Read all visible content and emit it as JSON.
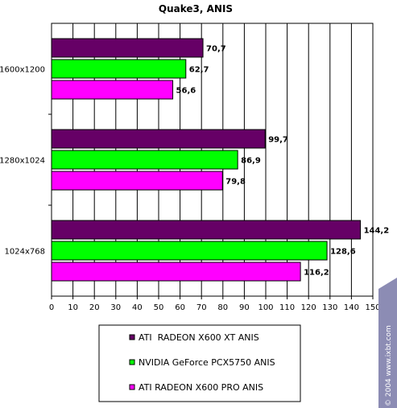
{
  "chart_data": {
    "type": "bar",
    "orientation": "horizontal",
    "title": "Quake3, ANIS",
    "categories": [
      "1600x1200",
      "1280x1024",
      "1024x768"
    ],
    "series": [
      {
        "name": "ATI  RADEON X600 XT ANIS",
        "color": "#660066",
        "values": [
          70.7,
          99.7,
          144.2
        ],
        "labels": [
          "70,7",
          "99,7",
          "144,2"
        ]
      },
      {
        "name": "NVIDIA GeForce PCX5750 ANIS",
        "color": "#00ff00",
        "values": [
          62.7,
          86.9,
          128.6
        ],
        "labels": [
          "62,7",
          "86,9",
          "128,6"
        ]
      },
      {
        "name": "ATI RADEON X600 PRO ANIS",
        "color": "#ff00ff",
        "values": [
          56.6,
          79.8,
          116.2
        ],
        "labels": [
          "56,6",
          "79,8",
          "116,2"
        ]
      }
    ],
    "xlim": [
      0,
      150
    ],
    "xticks": [
      "0",
      "10",
      "20",
      "30",
      "40",
      "50",
      "60",
      "70",
      "80",
      "90",
      "100",
      "110",
      "120",
      "130",
      "140",
      "150"
    ],
    "grid": true,
    "legend_position": "bottom"
  },
  "watermark": "© 2004 www.ixbt.com"
}
